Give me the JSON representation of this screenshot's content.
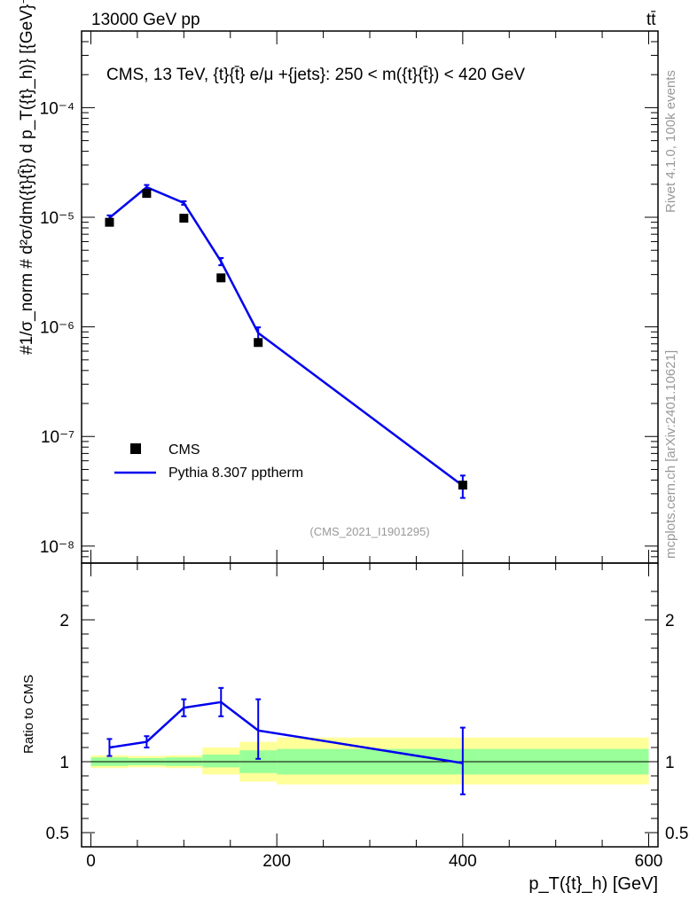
{
  "header": {
    "left": "13000 GeV pp",
    "right": "tt̄",
    "side_rivet": "Rivet 4.1.0,  100k events",
    "side_mcplots": "mcplots.cern.ch [arXiv:2401.10621]"
  },
  "colors": {
    "data": "#000000",
    "mc": "#0000ee",
    "band_inner": "#99ff99",
    "band_outer": "#ffff99",
    "watermark": "#999999"
  },
  "chart_data": [
    {
      "type": "scatter",
      "title": "CMS, 13 TeV, {t}{t̄} e/μ +{jets}: 250 < m({t}{t̄}) < 420 GeV",
      "ylabel": "#1/σ_norm # d²σ/dm({t}{t̄}) d p_T({t}_h)} [{GeV}⁻²]",
      "yscale": "log",
      "ylim": [
        7e-09,
        0.0005
      ],
      "xlim": [
        -10,
        610
      ],
      "ytick_labels": [
        "10⁻⁸",
        "10⁻⁷",
        "10⁻⁶",
        "10⁻⁵",
        "10⁻⁴"
      ],
      "watermark": "(CMS_2021_I1901295)",
      "legend": {
        "position": "bottom-left",
        "entries": [
          "CMS",
          "Pythia 8.307 pptherm"
        ]
      },
      "series": [
        {
          "name": "CMS",
          "x": [
            20,
            60,
            100,
            140,
            180,
            400
          ],
          "values": [
            9e-06,
            1.65e-05,
            9.8e-06,
            2.8e-06,
            7.2e-07,
            3.6e-08
          ]
        },
        {
          "name": "Pythia 8.307 pptherm",
          "x": [
            20,
            60,
            100,
            140,
            180,
            400
          ],
          "values": [
            9.9e-06,
            1.88e-05,
            1.35e-05,
            3.95e-06,
            8.8e-07,
            3.55e-08
          ],
          "err_low": [
            9.4e-06,
            1.79e-05,
            1.3e-05,
            3.65e-06,
            7.7e-07,
            2.75e-08
          ],
          "err_high": [
            1.04e-05,
            1.97e-05,
            1.4e-05,
            4.25e-06,
            9.9e-07,
            4.4e-08
          ]
        }
      ]
    },
    {
      "type": "line",
      "title": "",
      "xlabel": "p_T({t}_h) [GeV]",
      "ylabel": "Ratio to CMS",
      "ylim": [
        0.4,
        2.4
      ],
      "xlim": [
        -10,
        610
      ],
      "ytick_labels": [
        "0.5",
        "1",
        "2"
      ],
      "xtick_labels": [
        "0",
        "200",
        "400",
        "600"
      ],
      "series": [
        {
          "name": "Pythia 8.307 pptherm",
          "x": [
            20,
            60,
            100,
            140,
            180,
            400
          ],
          "values": [
            1.1,
            1.14,
            1.38,
            1.42,
            1.22,
            0.99
          ],
          "err_low": [
            1.04,
            1.1,
            1.32,
            1.32,
            1.02,
            0.77
          ],
          "err_high": [
            1.16,
            1.18,
            1.44,
            1.52,
            1.44,
            1.24
          ]
        }
      ],
      "bands": [
        {
          "x0": 0,
          "x1": 40,
          "inner": [
            0.97,
            1.03
          ],
          "outer": [
            0.955,
            1.045
          ]
        },
        {
          "x0": 40,
          "x1": 80,
          "inner": [
            0.975,
            1.025
          ],
          "outer": [
            0.96,
            1.04
          ]
        },
        {
          "x0": 80,
          "x1": 120,
          "inner": [
            0.97,
            1.03
          ],
          "outer": [
            0.955,
            1.045
          ]
        },
        {
          "x0": 120,
          "x1": 160,
          "inner": [
            0.96,
            1.05
          ],
          "outer": [
            0.91,
            1.1
          ]
        },
        {
          "x0": 160,
          "x1": 200,
          "inner": [
            0.92,
            1.08
          ],
          "outer": [
            0.86,
            1.14
          ]
        },
        {
          "x0": 200,
          "x1": 600,
          "inner": [
            0.91,
            1.09
          ],
          "outer": [
            0.84,
            1.17
          ]
        }
      ]
    }
  ]
}
